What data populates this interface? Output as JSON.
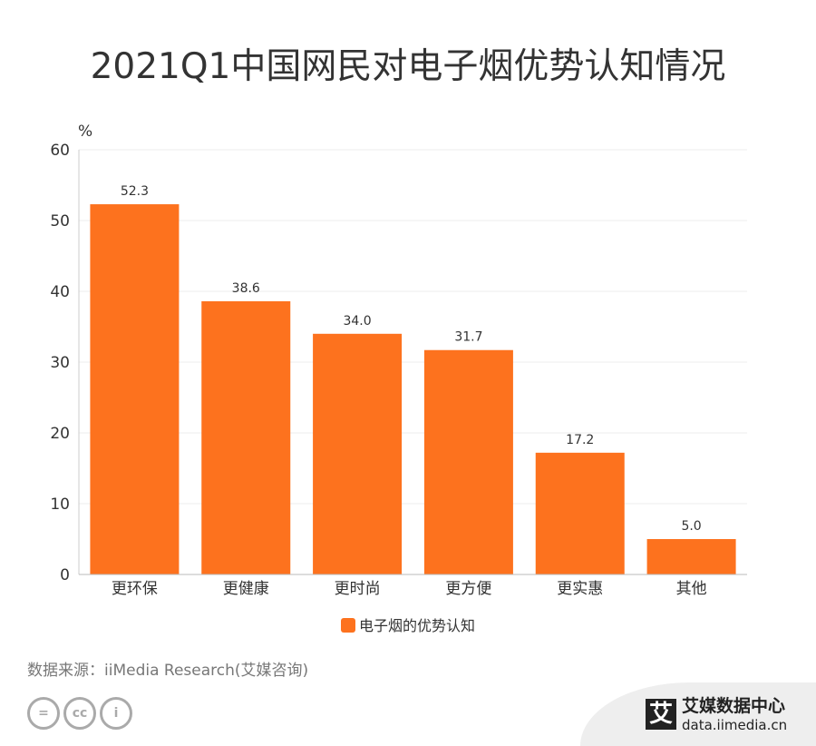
{
  "chart_data": {
    "type": "bar",
    "title": "2021Q1中国网民对电子烟优势认知情况",
    "ylabel": "%",
    "xlabel": "",
    "categories": [
      "更环保",
      "更健康",
      "更时尚",
      "更方便",
      "更实惠",
      "其他"
    ],
    "series": [
      {
        "name": "电子烟的优势认知",
        "values": [
          52.3,
          38.6,
          34.0,
          31.7,
          17.2,
          5.0
        ],
        "color": "#fd721e"
      }
    ],
    "ylim": [
      0,
      60
    ],
    "yticks": [
      0,
      10,
      20,
      30,
      40,
      50,
      60
    ],
    "grid": true,
    "legend": "bottom-center"
  },
  "footer": {
    "source": "数据来源：iiMedia Research(艾媒咨询)",
    "logo_name": "艾媒数据中心",
    "logo_url": "data.iimedia.cn",
    "logo_mark": "艾",
    "license_icons": [
      "=",
      "cc",
      "i"
    ]
  }
}
